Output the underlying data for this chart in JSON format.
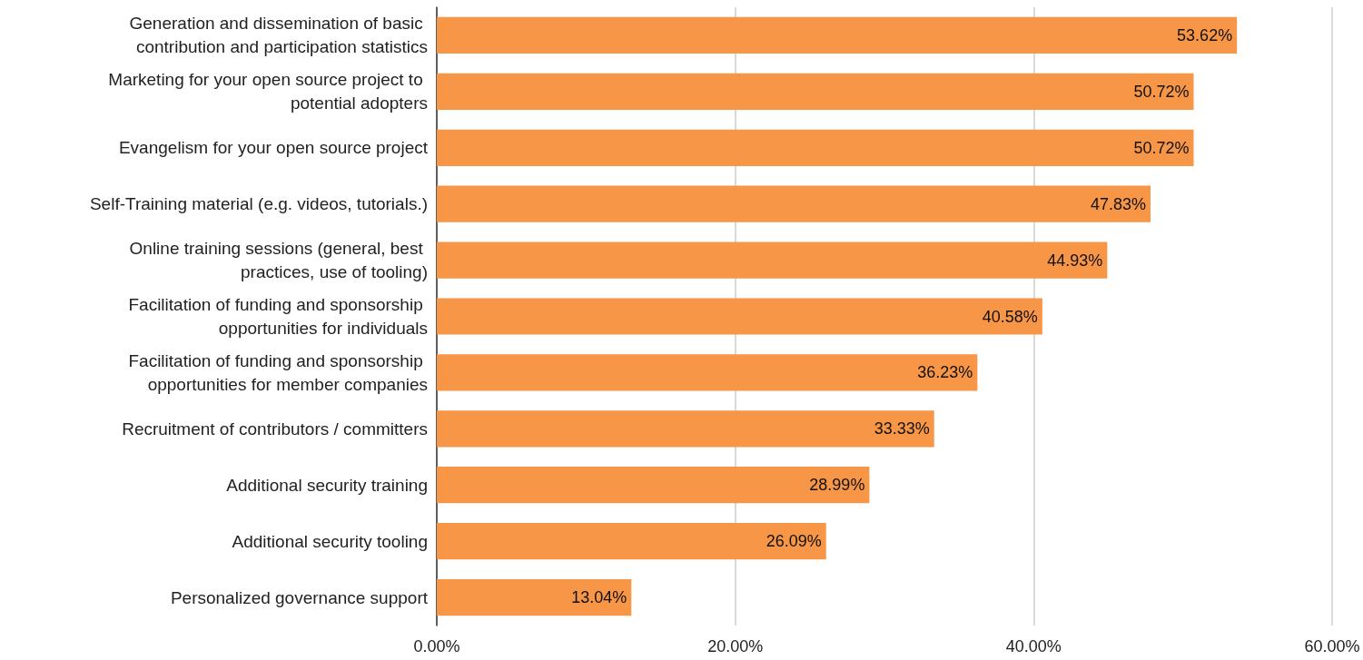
{
  "chart_data": {
    "type": "bar",
    "orientation": "horizontal",
    "categories": [
      "Generation and dissemination of basic contribution and participation statistics",
      "Marketing for your open source project to potential adopters",
      "Evangelism for your open source project",
      "Self-Training material (e.g. videos, tutorials.)",
      "Online training sessions (general, best practices, use of tooling)",
      "Facilitation of funding and sponsorship opportunities for individuals",
      "Facilitation of funding and sponsorship opportunities for member companies",
      "Recruitment of contributors / committers",
      "Additional security training",
      "Additional security tooling",
      "Personalized governance support"
    ],
    "values": [
      53.62,
      50.72,
      50.72,
      47.83,
      44.93,
      40.58,
      36.23,
      33.33,
      28.99,
      26.09,
      13.04
    ],
    "value_labels": [
      "53.62%",
      "50.72%",
      "50.72%",
      "47.83%",
      "44.93%",
      "40.58%",
      "36.23%",
      "33.33%",
      "28.99%",
      "26.09%",
      "13.04%"
    ],
    "color": "#f79646",
    "xlim": [
      0,
      60
    ],
    "xticks": [
      {
        "value": 0,
        "label": "0.00%"
      },
      {
        "value": 20,
        "label": "20.00%"
      },
      {
        "value": 40,
        "label": "40.00%"
      },
      {
        "value": 60,
        "label": "60.00%"
      }
    ],
    "grid": "x"
  }
}
